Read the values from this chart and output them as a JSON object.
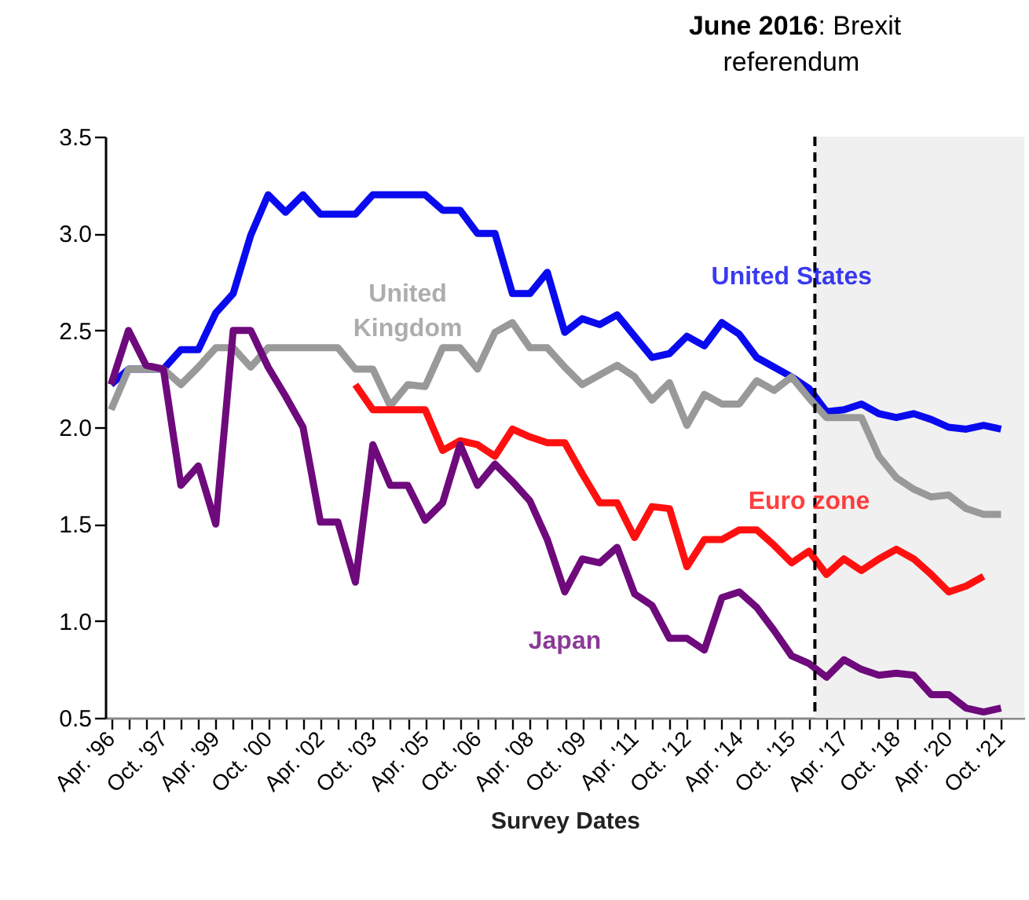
{
  "chart_data": {
    "type": "line",
    "xlabel": "Survey Dates",
    "x": [
      "1996-04",
      "1996-10",
      "1997-04",
      "1997-10",
      "1998-04",
      "1998-10",
      "1999-04",
      "1999-10",
      "2000-04",
      "2000-10",
      "2001-04",
      "2001-10",
      "2002-04",
      "2002-10",
      "2003-04",
      "2003-10",
      "2004-04",
      "2004-10",
      "2005-04",
      "2005-10",
      "2006-04",
      "2006-10",
      "2007-04",
      "2007-10",
      "2008-04",
      "2008-10",
      "2009-04",
      "2009-10",
      "2010-04",
      "2010-10",
      "2011-04",
      "2011-10",
      "2012-04",
      "2012-10",
      "2013-04",
      "2013-10",
      "2014-04",
      "2014-10",
      "2015-04",
      "2015-10",
      "2016-04",
      "2016-10",
      "2017-04",
      "2017-10",
      "2018-04",
      "2018-10",
      "2019-04",
      "2019-10",
      "2020-04",
      "2020-10",
      "2021-04",
      "2021-10"
    ],
    "series": [
      {
        "name": "United States",
        "color": "#0a0aee",
        "values": [
          2.22,
          2.3,
          2.3,
          2.3,
          2.4,
          2.4,
          2.59,
          2.69,
          2.99,
          3.2,
          3.11,
          3.2,
          3.1,
          3.1,
          3.1,
          3.2,
          3.2,
          3.2,
          3.2,
          3.12,
          3.12,
          3.0,
          3.0,
          2.69,
          2.69,
          2.8,
          2.49,
          2.56,
          2.53,
          2.58,
          2.47,
          2.36,
          2.38,
          2.47,
          2.42,
          2.54,
          2.48,
          2.36,
          2.31,
          2.26,
          2.2,
          2.08,
          2.09,
          2.12,
          2.07,
          2.05,
          2.07,
          2.04,
          2.0,
          1.99,
          2.01,
          1.99
        ]
      },
      {
        "name": "United Kingdom",
        "color": "#999999",
        "values": [
          2.09,
          2.3,
          2.3,
          2.3,
          2.22,
          2.31,
          2.41,
          2.41,
          2.31,
          2.41,
          2.41,
          2.41,
          2.41,
          2.41,
          2.3,
          2.3,
          2.11,
          2.22,
          2.21,
          2.41,
          2.41,
          2.3,
          2.49,
          2.54,
          2.41,
          2.41,
          2.31,
          2.22,
          2.27,
          2.32,
          2.26,
          2.14,
          2.23,
          2.01,
          2.17,
          2.12,
          2.12,
          2.24,
          2.19,
          2.26,
          2.15,
          2.05,
          2.05,
          2.05,
          1.85,
          1.74,
          1.68,
          1.64,
          1.65,
          1.58,
          1.55,
          1.55
        ]
      },
      {
        "name": "Euro zone",
        "color": "#ff1010",
        "values": [
          null,
          null,
          null,
          null,
          null,
          null,
          null,
          null,
          null,
          null,
          null,
          null,
          null,
          null,
          2.22,
          2.09,
          2.09,
          2.09,
          2.09,
          1.88,
          1.93,
          1.91,
          1.85,
          1.99,
          1.95,
          1.92,
          1.92,
          1.76,
          1.61,
          1.61,
          1.43,
          1.59,
          1.58,
          1.28,
          1.42,
          1.42,
          1.47,
          1.47,
          1.39,
          1.3,
          1.36,
          1.24,
          1.32,
          1.26,
          1.32,
          1.37,
          1.32,
          1.24,
          1.15,
          1.18,
          1.23,
          null
        ]
      },
      {
        "name": "Japan",
        "color": "#6e0a7c",
        "values": [
          2.22,
          2.5,
          2.32,
          2.3,
          1.7,
          1.8,
          1.5,
          2.5,
          2.5,
          2.31,
          2.16,
          2.0,
          1.51,
          1.51,
          1.2,
          1.91,
          1.7,
          1.7,
          1.52,
          1.61,
          1.91,
          1.7,
          1.81,
          1.72,
          1.62,
          1.42,
          1.15,
          1.32,
          1.3,
          1.38,
          1.14,
          1.08,
          0.91,
          0.91,
          0.85,
          1.12,
          1.15,
          1.07,
          0.95,
          0.82,
          0.78,
          0.71,
          0.8,
          0.75,
          0.72,
          0.73,
          0.72,
          0.62,
          0.62,
          0.55,
          0.53,
          0.55
        ]
      }
    ],
    "xlim": [
      "1996-02",
      "2022-06"
    ],
    "xticks": [
      {
        "value": "1996-04",
        "label": "Apr. '96"
      },
      {
        "value": "1996-10",
        "label": null
      },
      {
        "value": "1997-04",
        "label": null
      },
      {
        "value": "1997-10",
        "label": "Oct. '97"
      },
      {
        "value": "1998-04",
        "label": null
      },
      {
        "value": "1998-10",
        "label": null
      },
      {
        "value": "1999-04",
        "label": "Apr. '99"
      },
      {
        "value": "1999-10",
        "label": null
      },
      {
        "value": "2000-04",
        "label": null
      },
      {
        "value": "2000-10",
        "label": "Oct. '00"
      },
      {
        "value": "2001-04",
        "label": null
      },
      {
        "value": "2001-10",
        "label": null
      },
      {
        "value": "2002-04",
        "label": "Apr. '02"
      },
      {
        "value": "2002-10",
        "label": null
      },
      {
        "value": "2003-04",
        "label": null
      },
      {
        "value": "2003-10",
        "label": "Oct. '03"
      },
      {
        "value": "2004-04",
        "label": null
      },
      {
        "value": "2004-10",
        "label": null
      },
      {
        "value": "2005-04",
        "label": "Apr. '05"
      },
      {
        "value": "2005-10",
        "label": null
      },
      {
        "value": "2006-04",
        "label": null
      },
      {
        "value": "2006-10",
        "label": "Oct. '06"
      },
      {
        "value": "2007-04",
        "label": null
      },
      {
        "value": "2007-10",
        "label": null
      },
      {
        "value": "2008-04",
        "label": "Apr. '08"
      },
      {
        "value": "2008-10",
        "label": null
      },
      {
        "value": "2009-04",
        "label": null
      },
      {
        "value": "2009-10",
        "label": "Oct. '09"
      },
      {
        "value": "2010-04",
        "label": null
      },
      {
        "value": "2010-10",
        "label": null
      },
      {
        "value": "2011-04",
        "label": "Apr. '11"
      },
      {
        "value": "2011-10",
        "label": null
      },
      {
        "value": "2012-04",
        "label": null
      },
      {
        "value": "2012-10",
        "label": "Oct. '12"
      },
      {
        "value": "2013-04",
        "label": null
      },
      {
        "value": "2013-10",
        "label": null
      },
      {
        "value": "2014-04",
        "label": "Apr. '14"
      },
      {
        "value": "2014-10",
        "label": null
      },
      {
        "value": "2015-04",
        "label": null
      },
      {
        "value": "2015-10",
        "label": "Oct. '15"
      },
      {
        "value": "2016-04",
        "label": null
      },
      {
        "value": "2016-10",
        "label": null
      },
      {
        "value": "2017-04",
        "label": "Apr. '17"
      },
      {
        "value": "2017-10",
        "label": null
      },
      {
        "value": "2018-04",
        "label": null
      },
      {
        "value": "2018-10",
        "label": "Oct. '18"
      },
      {
        "value": "2019-04",
        "label": null
      },
      {
        "value": "2019-10",
        "label": null
      },
      {
        "value": "2020-04",
        "label": "Apr. '20"
      },
      {
        "value": "2020-10",
        "label": null
      },
      {
        "value": "2021-04",
        "label": null
      },
      {
        "value": "2021-10",
        "label": "Oct. '21"
      }
    ],
    "ylim": [
      0.5,
      3.5
    ],
    "yticks": [
      {
        "value": 0.5,
        "label": "0.5"
      },
      {
        "value": 1,
        "label": "1.0"
      },
      {
        "value": 1.5,
        "label": "1.5"
      },
      {
        "value": 2,
        "label": "2.0"
      },
      {
        "value": 2.5,
        "label": "2.5"
      },
      {
        "value": 3,
        "label": "3.0"
      },
      {
        "value": 3.5,
        "label": "3.5"
      }
    ],
    "ref_lines": [
      {
        "axis": "x",
        "value": "2016-06",
        "label": "June 2016: Brexit referendum",
        "color": "#000000",
        "line_style": "dashed"
      }
    ],
    "bands": [
      {
        "axis": "x",
        "from": "2016-06",
        "to": "2022-06",
        "color": "#f0f0f0"
      }
    ],
    "grid": false,
    "legend": false,
    "marker": "none",
    "line_style": "solid"
  }
}
